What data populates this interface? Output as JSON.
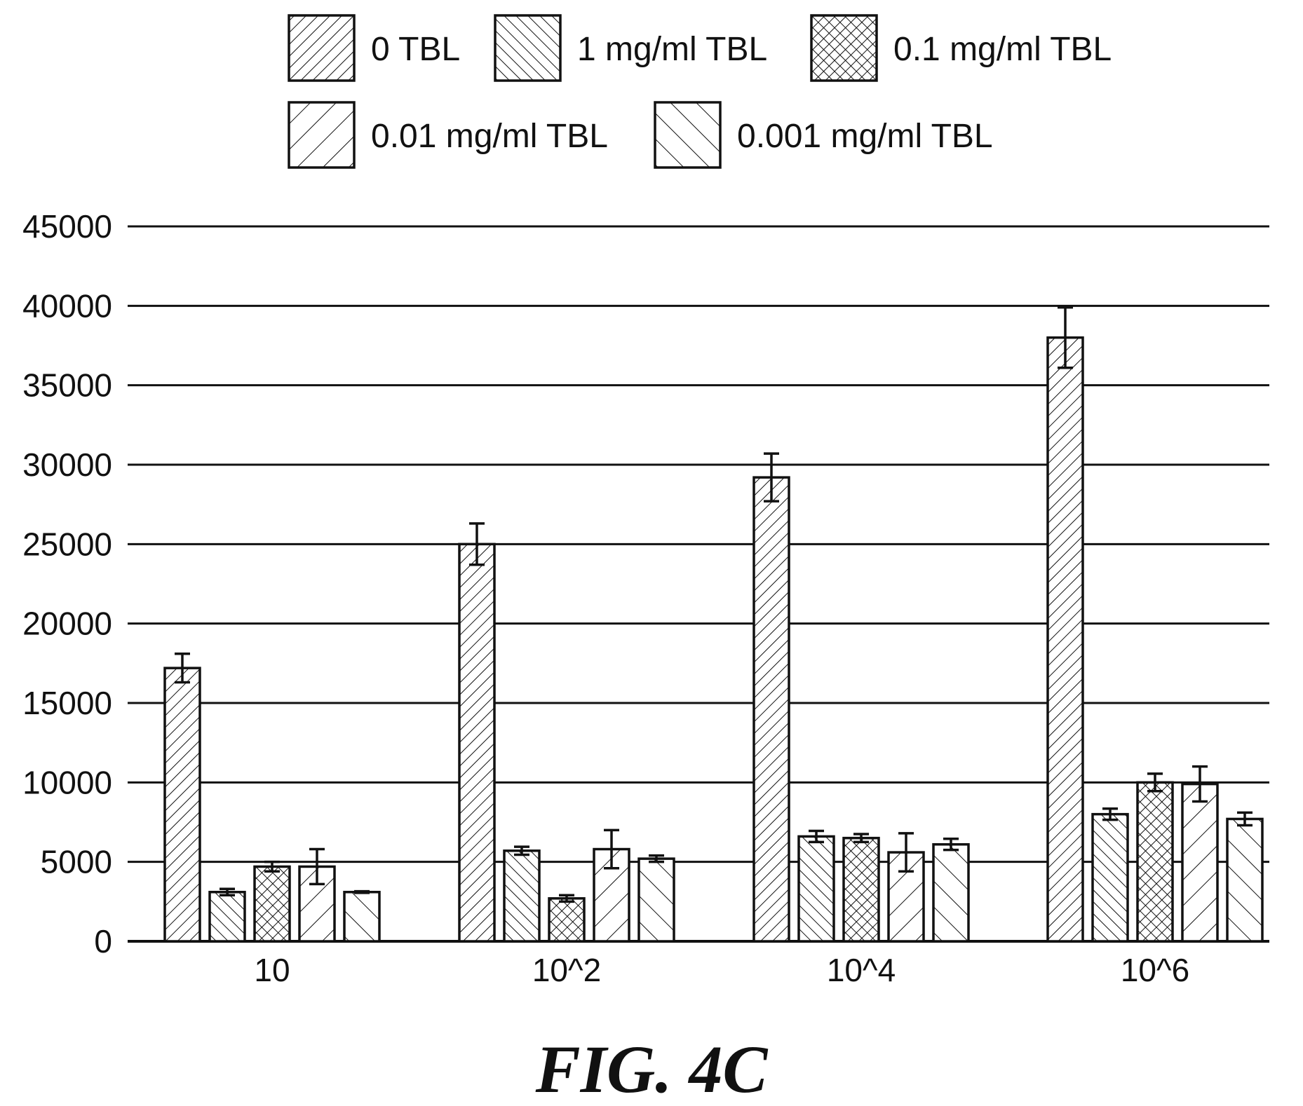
{
  "chart_data": {
    "type": "bar",
    "title": "",
    "xlabel": "",
    "ylabel": "",
    "categories": [
      "10",
      "10^2",
      "10^4",
      "10^6"
    ],
    "ylim": [
      0,
      45000
    ],
    "yticks": [
      0,
      5000,
      10000,
      15000,
      20000,
      25000,
      30000,
      35000,
      40000,
      45000
    ],
    "ytick_labels": [
      "0",
      "5000",
      "10000",
      "15000",
      "20000",
      "25000",
      "30000",
      "35000",
      "40000",
      "45000"
    ],
    "grid": true,
    "legend_position": "top",
    "series": [
      {
        "name": "0 TBL",
        "pattern": "diag-up-dense",
        "values": [
          17200,
          25000,
          29200,
          38000
        ],
        "errors": [
          900,
          1300,
          1500,
          1900
        ]
      },
      {
        "name": "1 mg/ml TBL",
        "pattern": "diag-down-dense",
        "values": [
          3100,
          5700,
          6600,
          8000
        ],
        "errors": [
          200,
          250,
          350,
          350
        ]
      },
      {
        "name": "0.1 mg/ml TBL",
        "pattern": "crosshatch",
        "values": [
          4700,
          2700,
          6500,
          10000
        ],
        "errors": [
          300,
          200,
          250,
          550
        ]
      },
      {
        "name": "0.01 mg/ml TBL",
        "pattern": "diag-up-sparse",
        "values": [
          4700,
          5800,
          5600,
          9900
        ],
        "errors": [
          1100,
          1200,
          1200,
          1100
        ]
      },
      {
        "name": "0.001 mg/ml TBL",
        "pattern": "diag-down-sparse",
        "values": [
          3100,
          5200,
          6100,
          7700
        ],
        "errors": [
          50,
          200,
          350,
          400
        ]
      }
    ]
  },
  "caption": "FIG. 4C"
}
